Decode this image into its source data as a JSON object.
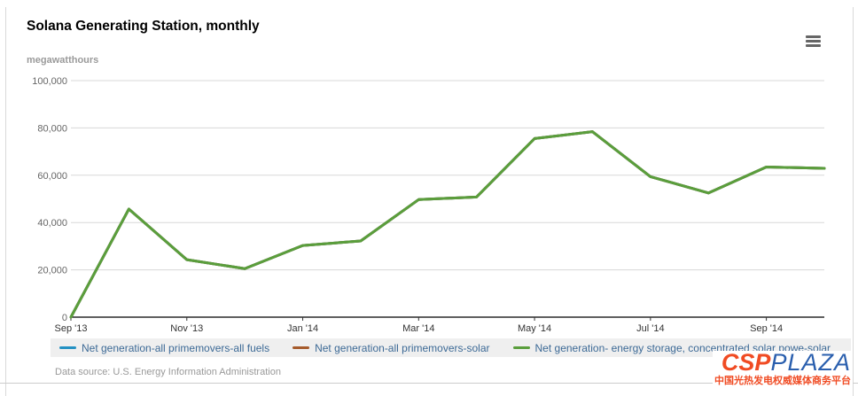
{
  "accent_color": "#1e9bd7",
  "chart_data": {
    "type": "line",
    "title": "Solana Generating Station, monthly",
    "ylabel": "megawatthours",
    "x": [
      "Sep '13",
      "Oct '13",
      "Nov '13",
      "Dec '13",
      "Jan '14",
      "Feb '14",
      "Mar '14",
      "Apr '14",
      "May '14",
      "Jun '14",
      "Jul '14",
      "Aug '14",
      "Sep '14",
      "Oct '14"
    ],
    "x_tick_indices": [
      0,
      2,
      4,
      6,
      8,
      10,
      12
    ],
    "x_tick_labels": [
      "Sep '13",
      "Nov '13",
      "Jan '14",
      "Mar '14",
      "May '14",
      "Jul '14",
      "Sep '14"
    ],
    "ylim": [
      0,
      100000
    ],
    "y_ticks": [
      0,
      20000,
      40000,
      60000,
      80000,
      100000
    ],
    "grid": true,
    "legend_position": "bottom",
    "note": "All three series plot identical values, so only the topmost (green) line is visible in the chart.",
    "series": [
      {
        "name": "Net generation-all primemovers-all fuels",
        "color": "#2491c3",
        "values": [
          0,
          45700,
          24300,
          20500,
          30300,
          32200,
          49700,
          50800,
          75500,
          78400,
          59400,
          52500,
          63500,
          62900
        ]
      },
      {
        "name": "Net generation-all primemovers-solar",
        "color": "#a55b2b",
        "values": [
          0,
          45700,
          24300,
          20500,
          30300,
          32200,
          49700,
          50800,
          75500,
          78400,
          59400,
          52500,
          63500,
          62900
        ]
      },
      {
        "name": "Net generation- energy storage, concentrated solar powe-solar",
        "color": "#5a9e3c",
        "values": [
          0,
          45700,
          24300,
          20500,
          30300,
          32200,
          49700,
          50800,
          75500,
          78400,
          59400,
          52500,
          63500,
          62900
        ]
      }
    ]
  },
  "header": {
    "menu_icon": "hamburger-menu-icon"
  },
  "footer": {
    "data_source": "Data source: U.S. Energy Information Administration"
  },
  "logo": {
    "csp": "CSP",
    "plaza": "PLAZA",
    "tagline": "中国光热发电权威媒体商务平台"
  }
}
